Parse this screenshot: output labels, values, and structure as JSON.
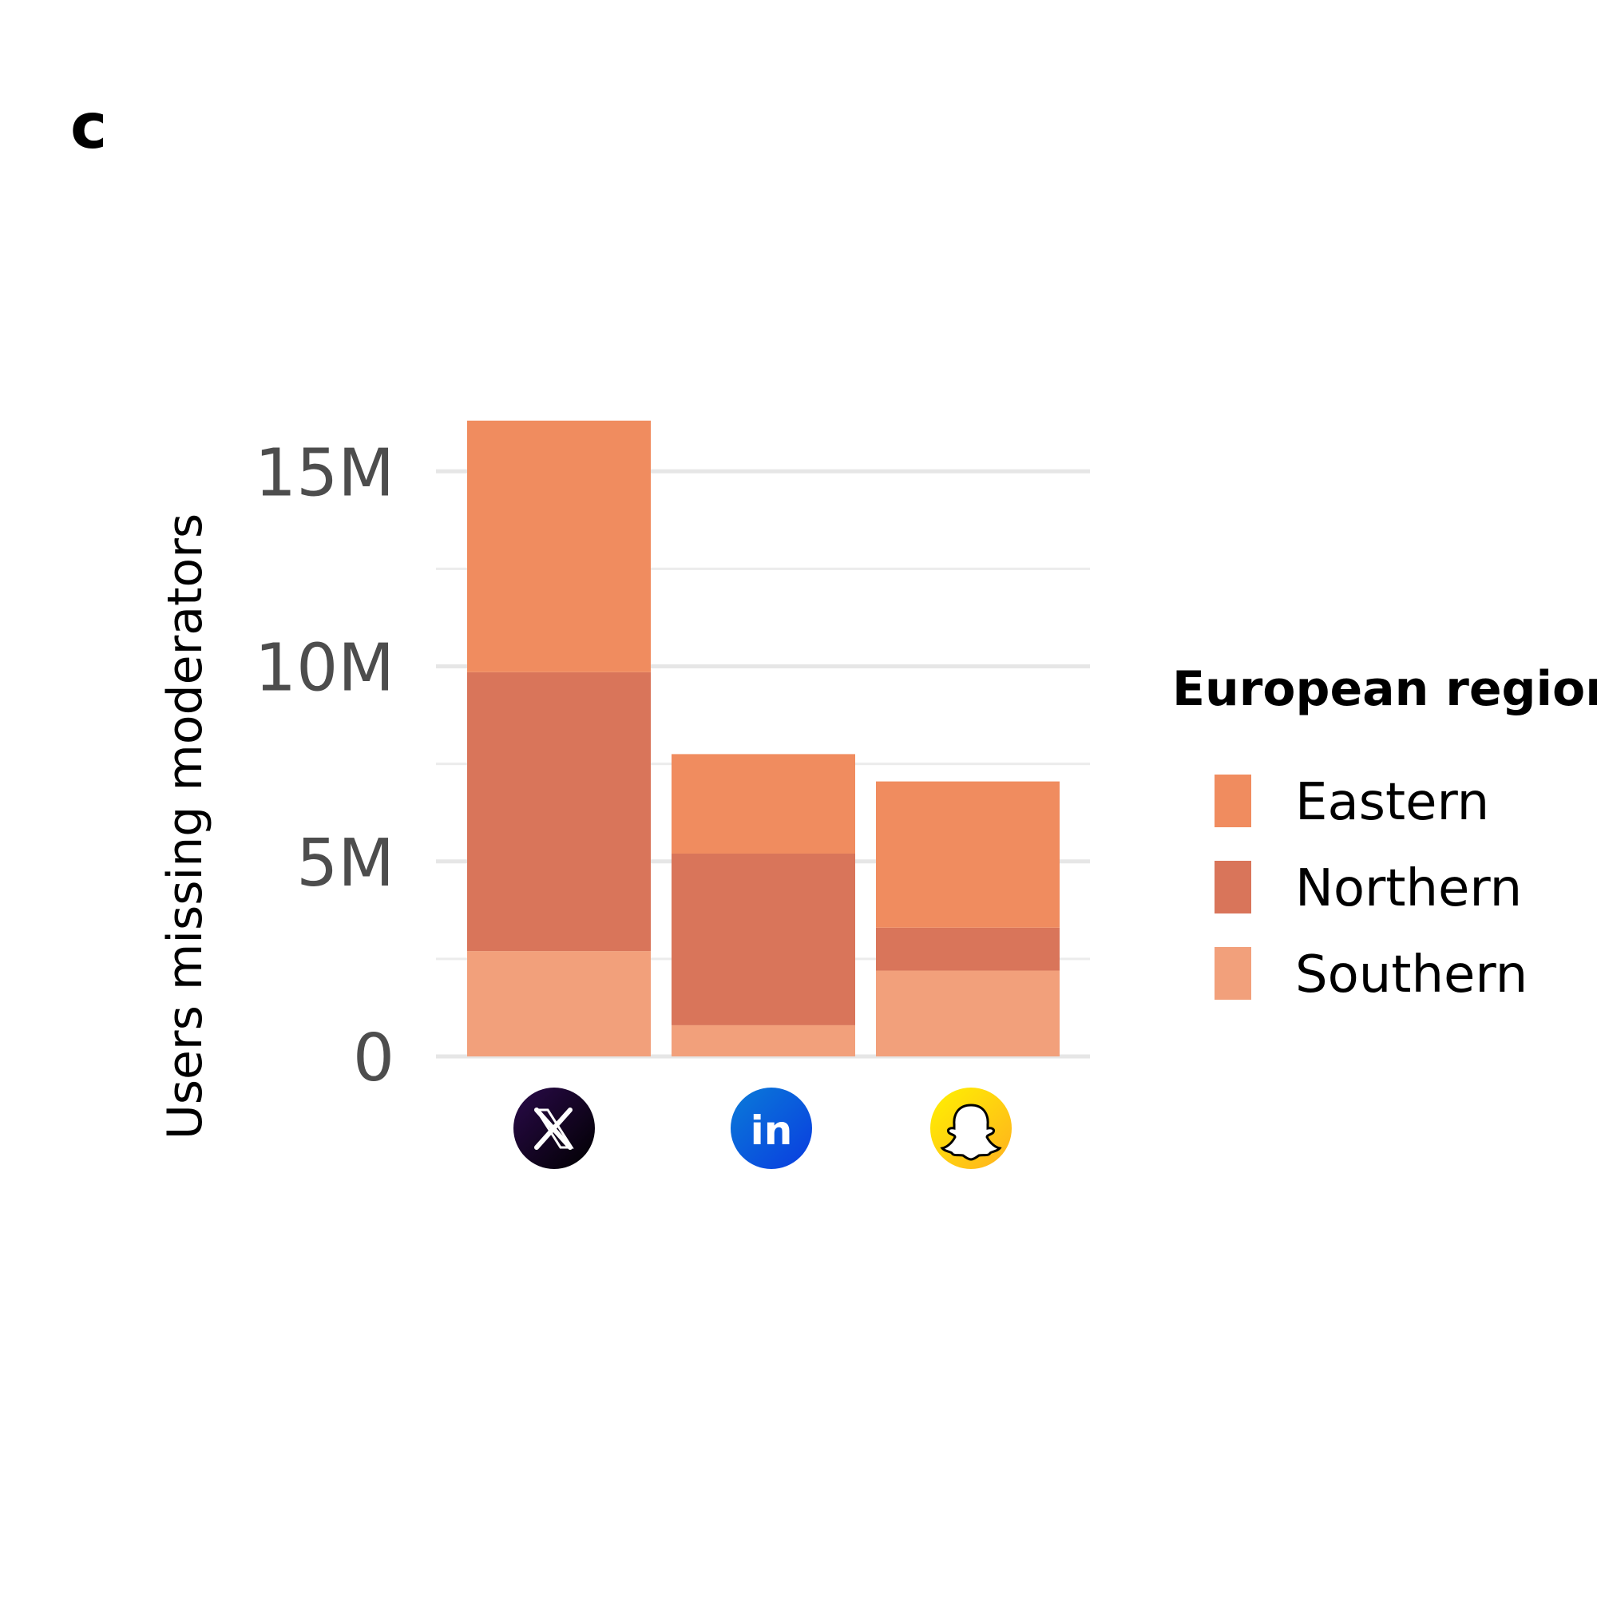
{
  "panel_label": "c",
  "chart_data": {
    "type": "bar",
    "stacked": true,
    "title": "",
    "xlabel": "",
    "ylabel": "Users missing moderators",
    "categories": [
      "X",
      "LinkedIn",
      "Snapchat"
    ],
    "category_icons": [
      "x-logo-icon",
      "linkedin-logo-icon",
      "snapchat-logo-icon"
    ],
    "icon_text": {
      "linkedin": "in"
    },
    "ylim": [
      0,
      16500000
    ],
    "yticks": [
      {
        "value": 0,
        "label": "0"
      },
      {
        "value": 5000000,
        "label": "5M"
      },
      {
        "value": 10000000,
        "label": "10M"
      },
      {
        "value": 15000000,
        "label": "15M"
      }
    ],
    "grid": true,
    "series": [
      {
        "name": "Southern",
        "color": "#f2a07b",
        "values": [
          2700000,
          800000,
          2200000
        ]
      },
      {
        "name": "Northern",
        "color": "#d9755a",
        "values": [
          7150000,
          4400000,
          1100000
        ]
      },
      {
        "name": "Eastern",
        "color": "#f08c5f",
        "values": [
          6450000,
          2550000,
          3750000
        ]
      }
    ],
    "legend": {
      "title": "European region",
      "position": "right",
      "order": [
        "Eastern",
        "Northern",
        "Southern"
      ]
    }
  }
}
